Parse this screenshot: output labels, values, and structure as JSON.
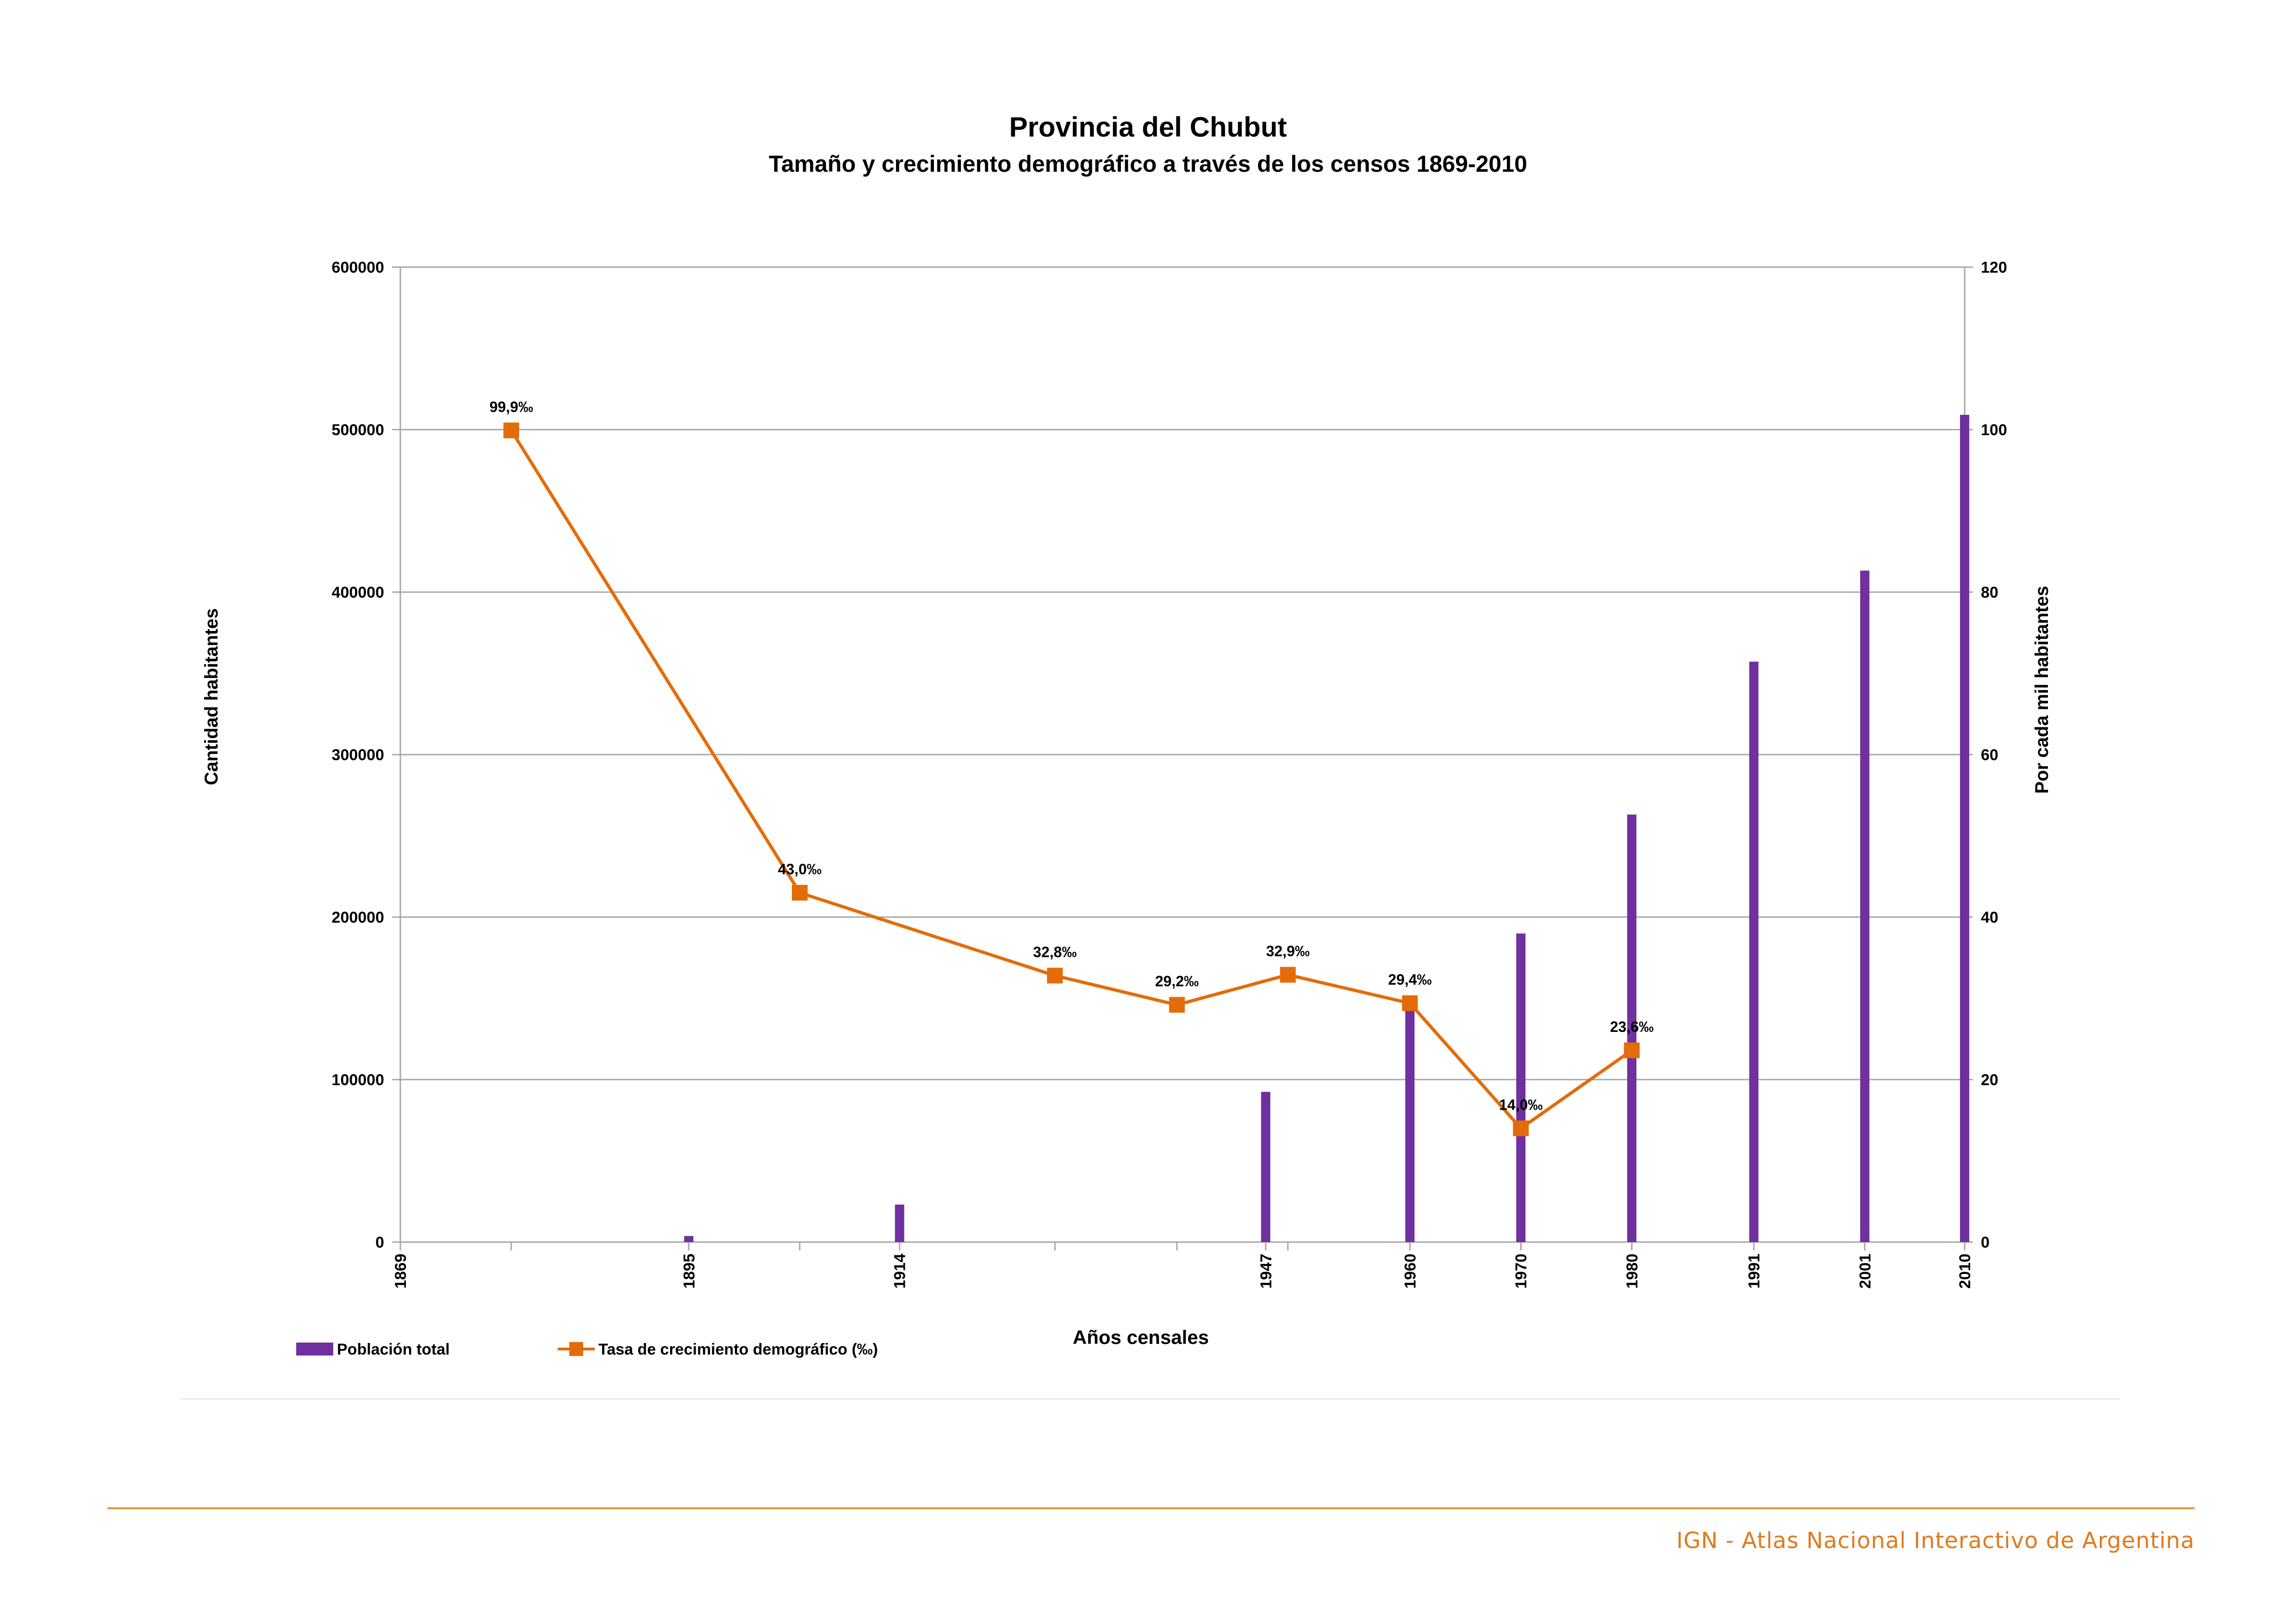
{
  "chart_data": {
    "type": "bar",
    "title": "Provincia del Chubut",
    "subtitle": "Tamaño y crecimiento demográfico a través de los censos 1869-2010",
    "xlabel": "Años censales",
    "ylabel_left": "Cantidad habitantes",
    "ylabel_right": "Por cada mil habitantes",
    "ylim_left": [
      0,
      600000
    ],
    "ylim_right": [
      0,
      120
    ],
    "yticks_left": [
      "0",
      "100000",
      "200000",
      "300000",
      "400000",
      "500000",
      "600000"
    ],
    "yticks_right": [
      "0",
      "20",
      "40",
      "60",
      "80",
      "100",
      "120"
    ],
    "x_ticks": [
      "1869",
      "1895",
      "1914",
      "1947",
      "1960",
      "1970",
      "1980",
      "1991",
      "2001",
      "2010"
    ],
    "x_range": [
      1869,
      2010
    ],
    "grid": true,
    "legend_position": "bottom-left",
    "series": [
      {
        "name": "Población total",
        "type": "bar",
        "axis": "left",
        "color": "#7030a0",
        "points": [
          {
            "year": 1869,
            "value": 0
          },
          {
            "year": 1895,
            "value": 3748
          },
          {
            "year": 1914,
            "value": 23065
          },
          {
            "year": 1947,
            "value": 92456
          },
          {
            "year": 1960,
            "value": 142412
          },
          {
            "year": 1970,
            "value": 189920
          },
          {
            "year": 1980,
            "value": 263116
          },
          {
            "year": 1991,
            "value": 357189
          },
          {
            "year": 2001,
            "value": 413237
          },
          {
            "year": 2010,
            "value": 509108
          }
        ]
      },
      {
        "name": "Tasa de crecimiento demográfico (‰)",
        "type": "line",
        "axis": "right",
        "color": "#e36c09",
        "points": [
          {
            "year": 1879,
            "value": 99.9,
            "label": "99,9‰"
          },
          {
            "year": 1905,
            "value": 43.0,
            "label": "43,0‰"
          },
          {
            "year": 1928,
            "value": 32.8,
            "label": "32,8‰"
          },
          {
            "year": 1939,
            "value": 29.2,
            "label": "29,2‰"
          },
          {
            "year": 1949,
            "value": 32.9,
            "label": "32,9‰"
          },
          {
            "year": 1960,
            "value": 29.4,
            "label": "29,4‰"
          },
          {
            "year": 1970,
            "value": 14.0,
            "label": "14,0‰"
          },
          {
            "year": 1980,
            "value": 23.6,
            "label": "23,6‰"
          }
        ]
      }
    ]
  },
  "footer": {
    "text": "IGN - Atlas Nacional Interactivo de Argentina"
  }
}
